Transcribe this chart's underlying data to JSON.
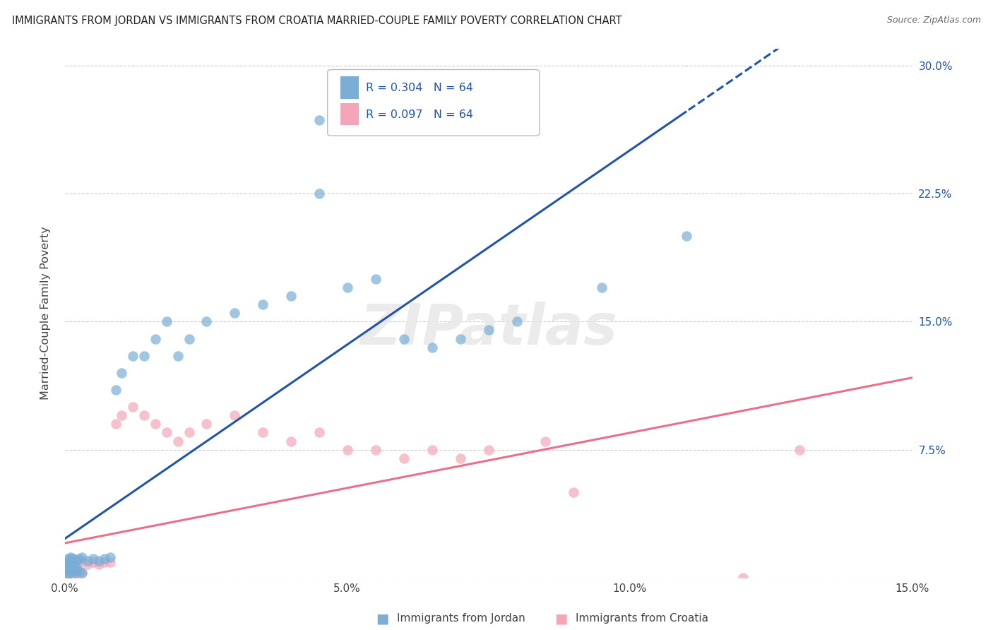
{
  "title": "IMMIGRANTS FROM JORDAN VS IMMIGRANTS FROM CROATIA MARRIED-COUPLE FAMILY POVERTY CORRELATION CHART",
  "source": "Source: ZipAtlas.com",
  "ylabel": "Married-Couple Family Poverty",
  "xlim": [
    0,
    0.15
  ],
  "ylim": [
    0,
    0.31
  ],
  "xticks": [
    0.0,
    0.05,
    0.1,
    0.15
  ],
  "xtick_labels": [
    "0.0%",
    "5.0%",
    "10.0%",
    "15.0%"
  ],
  "yticks": [
    0.0,
    0.075,
    0.15,
    0.225,
    0.3
  ],
  "ytick_labels": [
    "",
    "7.5%",
    "15.0%",
    "22.5%",
    "30.0%"
  ],
  "jordan_R": 0.304,
  "jordan_N": 64,
  "croatia_R": 0.097,
  "croatia_N": 64,
  "jordan_color": "#7aaed6",
  "croatia_color": "#f4a6b8",
  "jordan_line_color": "#2255AA",
  "croatia_line_color": "#e8708a",
  "watermark": "ZIPatlas",
  "background_color": "#FFFFFF",
  "grid_color": "#CCCCCC",
  "jordan_x": [
    0.0005,
    0.001,
    0.0008,
    0.0012,
    0.0015,
    0.002,
    0.0007,
    0.0018,
    0.0025,
    0.003,
    0.0005,
    0.001,
    0.0012,
    0.0008,
    0.0015,
    0.0022,
    0.0005,
    0.001,
    0.0008,
    0.0012,
    0.0005,
    0.001,
    0.0008,
    0.0012,
    0.0015,
    0.0005,
    0.001,
    0.0008,
    0.0012,
    0.002,
    0.0005,
    0.001,
    0.0015,
    0.002,
    0.0025,
    0.003,
    0.004,
    0.005,
    0.006,
    0.007,
    0.008,
    0.009,
    0.01,
    0.012,
    0.014,
    0.016,
    0.018,
    0.02,
    0.022,
    0.025,
    0.03,
    0.035,
    0.04,
    0.045,
    0.045,
    0.05,
    0.055,
    0.06,
    0.065,
    0.07,
    0.075,
    0.08,
    0.095,
    0.11
  ],
  "jordan_y": [
    0.005,
    0.004,
    0.003,
    0.006,
    0.005,
    0.004,
    0.002,
    0.003,
    0.004,
    0.003,
    0.006,
    0.005,
    0.004,
    0.007,
    0.005,
    0.004,
    0.008,
    0.007,
    0.006,
    0.008,
    0.009,
    0.008,
    0.01,
    0.009,
    0.008,
    0.01,
    0.011,
    0.01,
    0.009,
    0.01,
    0.011,
    0.012,
    0.011,
    0.01,
    0.011,
    0.012,
    0.01,
    0.011,
    0.01,
    0.011,
    0.012,
    0.11,
    0.12,
    0.13,
    0.13,
    0.14,
    0.15,
    0.13,
    0.14,
    0.15,
    0.155,
    0.16,
    0.165,
    0.268,
    0.225,
    0.17,
    0.175,
    0.14,
    0.135,
    0.14,
    0.145,
    0.15,
    0.17,
    0.2
  ],
  "croatia_x": [
    0.0005,
    0.001,
    0.0008,
    0.0012,
    0.0015,
    0.002,
    0.0007,
    0.0018,
    0.0025,
    0.003,
    0.0005,
    0.001,
    0.0012,
    0.0008,
    0.0015,
    0.0022,
    0.0005,
    0.001,
    0.0008,
    0.0012,
    0.0005,
    0.001,
    0.0008,
    0.0012,
    0.0015,
    0.0005,
    0.001,
    0.0008,
    0.0012,
    0.002,
    0.0005,
    0.001,
    0.0015,
    0.002,
    0.0025,
    0.003,
    0.004,
    0.005,
    0.006,
    0.007,
    0.008,
    0.009,
    0.01,
    0.012,
    0.014,
    0.016,
    0.018,
    0.02,
    0.022,
    0.025,
    0.03,
    0.035,
    0.04,
    0.045,
    0.05,
    0.055,
    0.06,
    0.065,
    0.07,
    0.075,
    0.085,
    0.09,
    0.12,
    0.13
  ],
  "croatia_y": [
    0.004,
    0.004,
    0.003,
    0.005,
    0.004,
    0.003,
    0.002,
    0.003,
    0.003,
    0.003,
    0.005,
    0.004,
    0.004,
    0.006,
    0.004,
    0.003,
    0.006,
    0.005,
    0.005,
    0.006,
    0.007,
    0.006,
    0.008,
    0.007,
    0.006,
    0.008,
    0.009,
    0.008,
    0.007,
    0.008,
    0.009,
    0.01,
    0.009,
    0.008,
    0.009,
    0.01,
    0.008,
    0.009,
    0.008,
    0.009,
    0.009,
    0.09,
    0.095,
    0.1,
    0.095,
    0.09,
    0.085,
    0.08,
    0.085,
    0.09,
    0.095,
    0.085,
    0.08,
    0.085,
    0.075,
    0.075,
    0.07,
    0.075,
    0.07,
    0.075,
    0.08,
    0.05,
    0.0,
    0.075
  ]
}
